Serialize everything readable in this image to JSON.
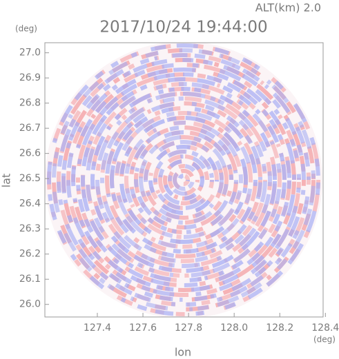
{
  "chart_data": {
    "type": "heatmap",
    "title": "2017/10/24 19:44:00",
    "subtitle": "ALT(km) 2.0",
    "xlabel": "lon",
    "ylabel": "lat",
    "xunit": "(deg)",
    "yunit": "(deg)",
    "xlim": [
      127.17,
      128.39
    ],
    "ylim": [
      25.95,
      27.04
    ],
    "xticks": [
      127.4,
      127.6,
      127.8,
      {
        "value": 128.0,
        "label": "128.0"
      },
      128.2,
      128.4
    ],
    "yticks": [
      {
        "value": 26.0,
        "label": "26.0"
      },
      26.1,
      26.2,
      26.3,
      26.4,
      26.5,
      26.6,
      26.7,
      26.8,
      26.9,
      {
        "value": 27.0,
        "label": "27.0"
      }
    ]
  }
}
